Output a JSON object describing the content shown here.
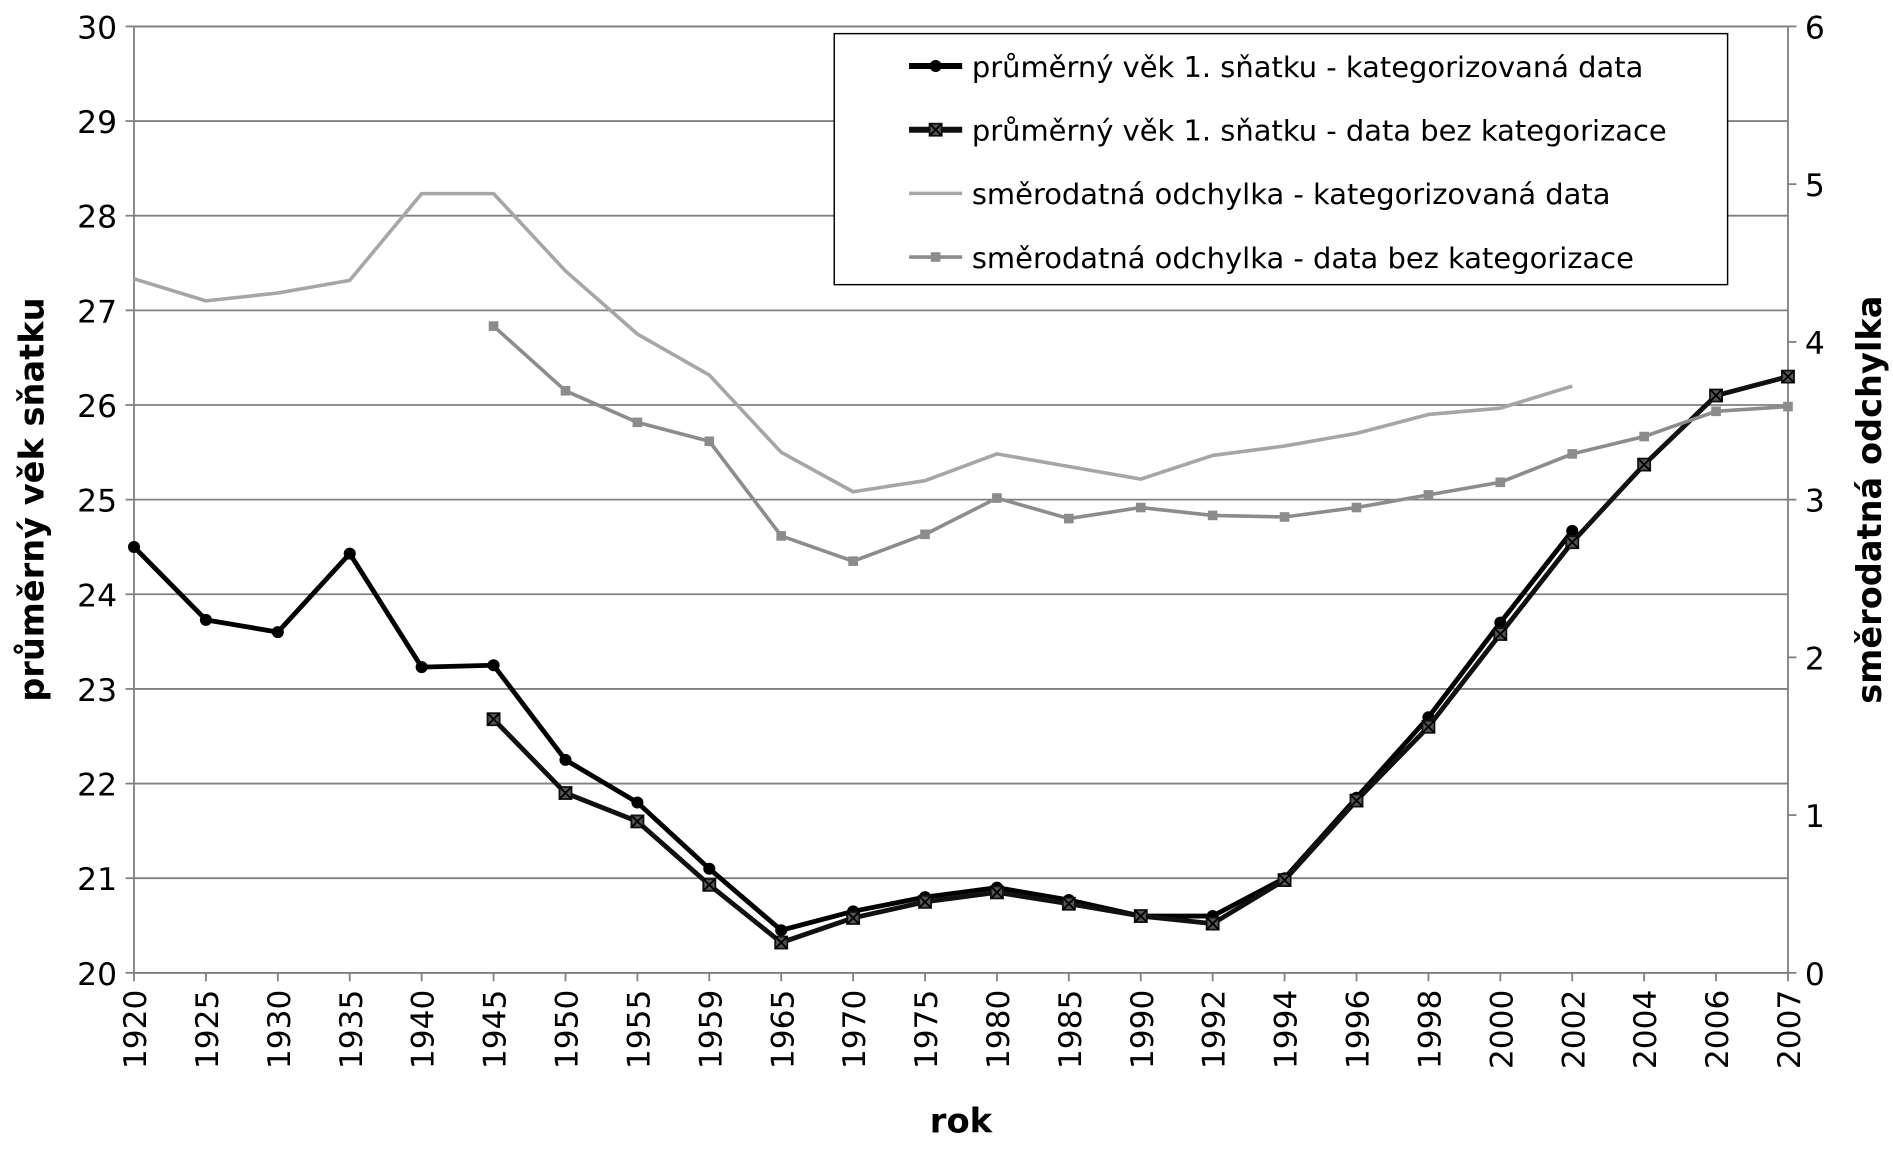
{
  "chart_data": {
    "type": "line",
    "x_label": "rok",
    "y_label": "průměrný věk sňatku",
    "y2_label": "směrodatná odchylka",
    "categories": [
      "1920",
      "1925",
      "1930",
      "1935",
      "1940",
      "1945",
      "1950",
      "1955",
      "1959",
      "1965",
      "1970",
      "1975",
      "1980",
      "1985",
      "1990",
      "1992",
      "1994",
      "1996",
      "1998",
      "2000",
      "2002",
      "2004",
      "2006",
      "2007"
    ],
    "ylim": [
      20,
      30
    ],
    "yticks": [
      20,
      21,
      22,
      23,
      24,
      25,
      26,
      27,
      28,
      29,
      30
    ],
    "y2lim": [
      0,
      6
    ],
    "y2ticks": [
      0,
      1,
      2,
      3,
      4,
      5,
      6
    ],
    "grid": true,
    "legend": "top-right",
    "series": [
      {
        "name": "průměrný věk 1. sňatku - kategorizovaná data",
        "color": "#000000",
        "marker": "circle",
        "values": [
          24.5,
          23.73,
          23.6,
          24.43,
          23.23,
          23.25,
          22.25,
          21.8,
          21.1,
          20.45,
          20.65,
          20.8,
          20.9,
          20.77,
          20.6,
          20.6,
          21.0,
          21.85,
          22.7,
          23.7,
          24.67,
          null,
          null,
          null
        ]
      },
      {
        "name": "průměrný věk 1. sňatku - data bez kategorizace",
        "color": "#111111",
        "marker": "x-square",
        "values": [
          null,
          null,
          null,
          null,
          null,
          22.68,
          21.9,
          21.6,
          20.93,
          20.32,
          20.58,
          20.75,
          20.85,
          20.73,
          20.6,
          20.52,
          20.98,
          21.82,
          22.6,
          23.58,
          24.55,
          25.37,
          26.1,
          26.3
        ]
      },
      {
        "name": "směrodatná odchylka - kategorizovaná data",
        "color": "#a6a6a6",
        "marker": "none",
        "axis": "y2",
        "values": [
          4.4,
          4.26,
          4.31,
          4.39,
          4.94,
          4.94,
          4.45,
          4.05,
          3.79,
          3.3,
          3.05,
          3.12,
          3.29,
          3.21,
          3.13,
          3.28,
          3.34,
          3.42,
          3.54,
          3.58,
          3.72,
          null,
          null,
          null
        ]
      },
      {
        "name": "směrodatná odchylka - data bez kategorizace",
        "color": "#8c8c8c",
        "marker": "square",
        "axis": "y2",
        "values": [
          null,
          null,
          null,
          null,
          null,
          4.1,
          3.69,
          3.49,
          3.37,
          2.77,
          2.61,
          2.78,
          3.01,
          2.88,
          2.95,
          2.9,
          2.89,
          2.95,
          3.03,
          3.11,
          3.29,
          3.4,
          3.56,
          3.59
        ]
      }
    ]
  }
}
